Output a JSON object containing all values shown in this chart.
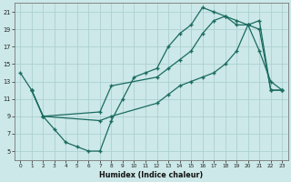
{
  "xlabel": "Humidex (Indice chaleur)",
  "xlim": [
    -0.5,
    23.5
  ],
  "ylim": [
    4,
    22
  ],
  "xticks": [
    0,
    1,
    2,
    3,
    4,
    5,
    6,
    7,
    8,
    9,
    10,
    11,
    12,
    13,
    14,
    15,
    16,
    17,
    18,
    19,
    20,
    21,
    22,
    23
  ],
  "yticks": [
    5,
    7,
    9,
    11,
    13,
    15,
    17,
    19,
    21
  ],
  "bg_color": "#cce8e8",
  "line_color": "#1a6b60",
  "grid_color": "#a8cccc",
  "line1_x": [
    0,
    1,
    2,
    3,
    4,
    5,
    6,
    7,
    8,
    9,
    10,
    11,
    12,
    13,
    14,
    15,
    16,
    17,
    18,
    19,
    20,
    21,
    22,
    23
  ],
  "line1_y": [
    14.0,
    12.0,
    9.0,
    7.5,
    6.0,
    5.5,
    5.0,
    5.0,
    8.5,
    11.0,
    13.5,
    14.0,
    14.5,
    17.0,
    18.5,
    19.5,
    21.5,
    21.0,
    20.5,
    20.0,
    19.5,
    16.5,
    13.0,
    12.0
  ],
  "line2_x": [
    1,
    2,
    7,
    8,
    12,
    13,
    14,
    15,
    16,
    17,
    18,
    19,
    20,
    21,
    22,
    23
  ],
  "line2_y": [
    12.0,
    9.0,
    9.5,
    12.5,
    13.5,
    14.5,
    15.5,
    16.5,
    18.5,
    20.0,
    20.5,
    19.5,
    19.5,
    20.0,
    12.0,
    12.0
  ],
  "line3_x": [
    1,
    2,
    7,
    8,
    12,
    13,
    14,
    15,
    16,
    17,
    18,
    19,
    20,
    21,
    22,
    23
  ],
  "line3_y": [
    12.0,
    9.0,
    8.5,
    9.0,
    10.5,
    11.5,
    12.5,
    13.0,
    13.5,
    14.0,
    15.0,
    16.5,
    19.5,
    19.0,
    12.0,
    12.0
  ]
}
